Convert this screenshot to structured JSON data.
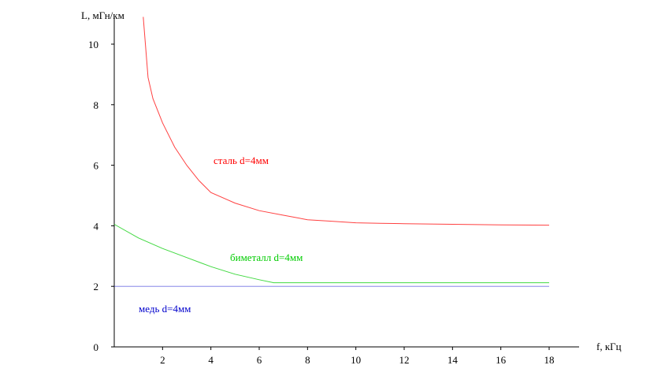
{
  "chart_data": {
    "type": "line",
    "xlabel": "f, кГц",
    "ylabel": "L, мГн/км",
    "xlim": [
      0,
      19
    ],
    "ylim": [
      0,
      10.9
    ],
    "x_ticks": [
      2,
      4,
      6,
      8,
      10,
      12,
      14,
      16,
      18
    ],
    "y_ticks": [
      0,
      2,
      4,
      6,
      8,
      10
    ],
    "grid": false,
    "series": [
      {
        "name": "сталь d=4мм",
        "color": "#ff0000",
        "points": [
          [
            1.2,
            10.9
          ],
          [
            1.4,
            8.9
          ],
          [
            1.6,
            8.2
          ],
          [
            2,
            7.4
          ],
          [
            2.5,
            6.6
          ],
          [
            3,
            6.0
          ],
          [
            3.5,
            5.5
          ],
          [
            4,
            5.1
          ],
          [
            5,
            4.75
          ],
          [
            6,
            4.5
          ],
          [
            7,
            4.35
          ],
          [
            8,
            4.2
          ],
          [
            9,
            4.15
          ],
          [
            10,
            4.1
          ],
          [
            11,
            4.08
          ],
          [
            12,
            4.07
          ],
          [
            14,
            4.05
          ],
          [
            16,
            4.03
          ],
          [
            18,
            4.02
          ]
        ]
      },
      {
        "name": "биметалл d=4мм",
        "color": "#00cc00",
        "points": [
          [
            0,
            4.05
          ],
          [
            1,
            3.6
          ],
          [
            2,
            3.25
          ],
          [
            3,
            2.95
          ],
          [
            4,
            2.65
          ],
          [
            5,
            2.4
          ],
          [
            6,
            2.22
          ],
          [
            6.6,
            2.12
          ],
          [
            8,
            2.12
          ],
          [
            10,
            2.12
          ],
          [
            12,
            2.12
          ],
          [
            14,
            2.12
          ],
          [
            16,
            2.12
          ],
          [
            18,
            2.12
          ]
        ]
      },
      {
        "name": "медь d=4мм",
        "color": "#0000cc",
        "points": [
          [
            0,
            2.0
          ],
          [
            18,
            2.0
          ]
        ]
      }
    ]
  }
}
